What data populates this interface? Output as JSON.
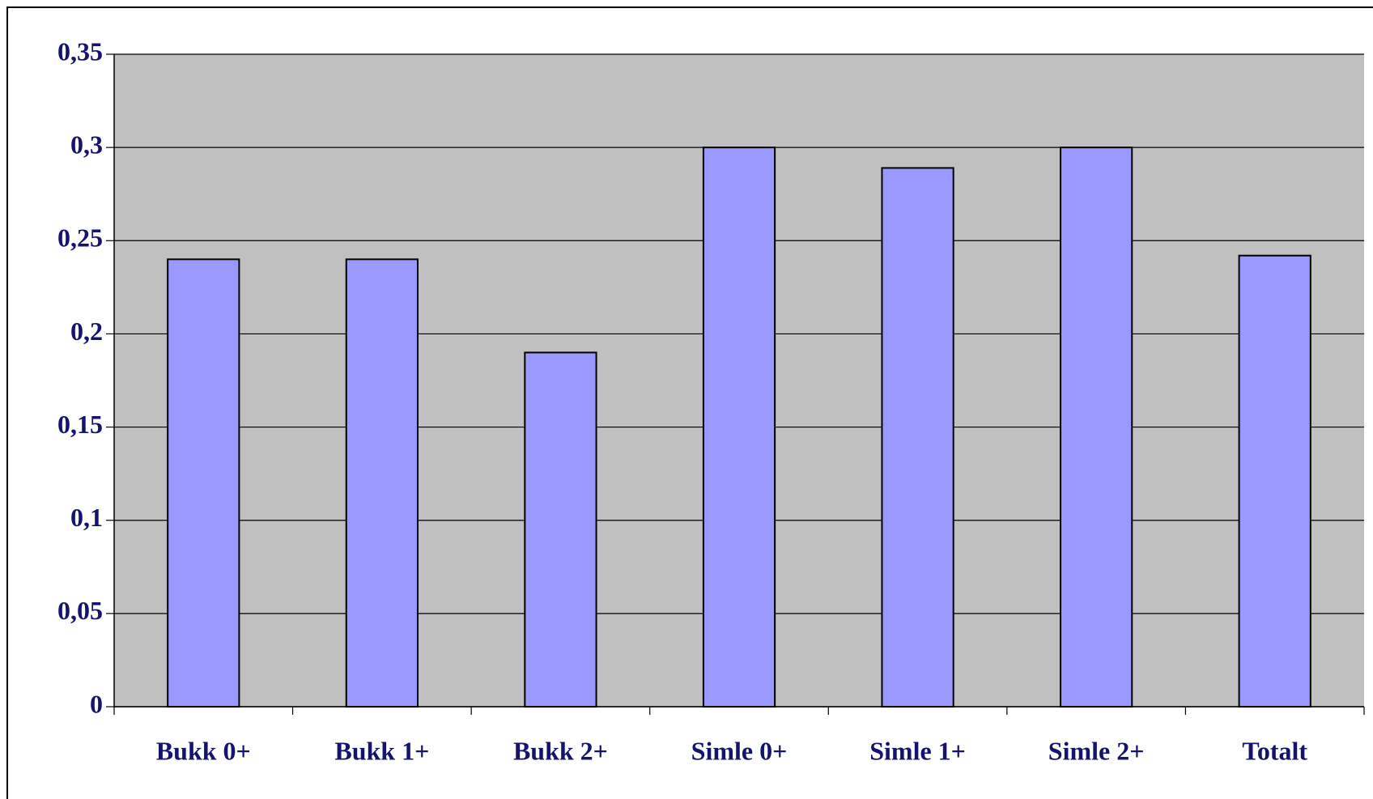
{
  "chart_data": {
    "type": "bar",
    "categories": [
      "Bukk 0+",
      "Bukk 1+",
      "Bukk 2+",
      "Simle 0+",
      "Simle 1+",
      "Simle 2+",
      "Totalt"
    ],
    "values": [
      0.24,
      0.24,
      0.19,
      0.3,
      0.289,
      0.3,
      0.242
    ],
    "color": "#9999ff",
    "ylim": [
      0,
      0.35
    ],
    "yticks": [
      0,
      {
        "value": 0.05,
        "label": "0,05"
      },
      {
        "value": 0.1,
        "label": "0,1"
      },
      {
        "value": 0.15,
        "label": "0,15"
      },
      {
        "value": 0.2,
        "label": "0,2"
      },
      {
        "value": 0.25,
        "label": "0,25"
      },
      {
        "value": 0.3,
        "label": "0,3"
      },
      {
        "value": 0.35,
        "label": "0,35"
      }
    ],
    "grid": true
  }
}
